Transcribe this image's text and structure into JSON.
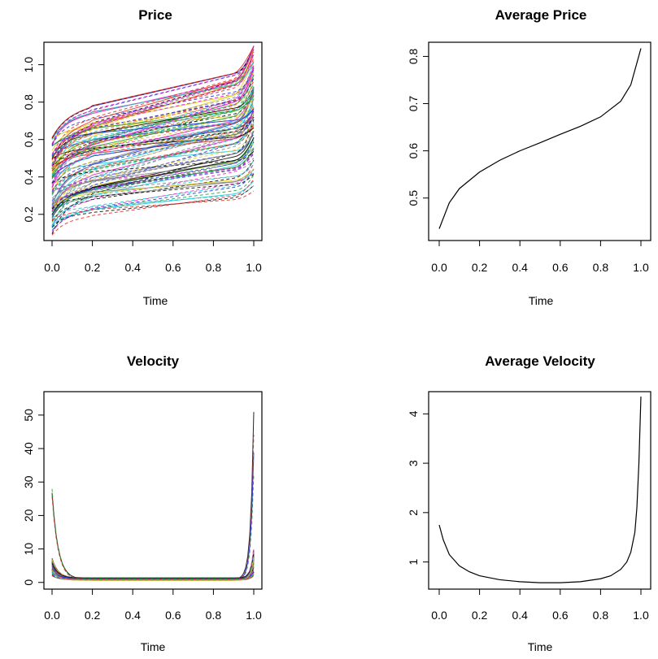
{
  "chart_data": [
    {
      "type": "line",
      "title": "Price",
      "xlabel": "Time",
      "ylabel": "",
      "xlim": [
        0,
        1
      ],
      "ylim": [
        0.06,
        1.12
      ],
      "xticks": [
        "0.0",
        "0.2",
        "0.4",
        "0.6",
        "0.8",
        "1.0"
      ],
      "yticks": [
        "0.2",
        "0.4",
        "0.6",
        "0.8",
        "1.0"
      ],
      "series_description": "many individual price trajectories (multi-coloured, solid and dashed), each rising from its start value near time 0 to a higher value near time 1",
      "series_count_approx": 120,
      "start_range": [
        0.08,
        0.62
      ],
      "end_range": [
        0.22,
        1.1
      ]
    },
    {
      "type": "line",
      "title": "Average Price",
      "xlabel": "Time",
      "ylabel": "",
      "xlim": [
        0,
        1
      ],
      "ylim": [
        0.41,
        0.83
      ],
      "xticks": [
        "0.0",
        "0.2",
        "0.4",
        "0.6",
        "0.8",
        "1.0"
      ],
      "yticks": [
        "0.5",
        "0.6",
        "0.7",
        "0.8"
      ],
      "x": [
        0.0,
        0.05,
        0.1,
        0.2,
        0.3,
        0.4,
        0.5,
        0.6,
        0.7,
        0.8,
        0.9,
        0.95,
        1.0
      ],
      "y": [
        0.435,
        0.49,
        0.52,
        0.555,
        0.58,
        0.6,
        0.617,
        0.635,
        0.652,
        0.672,
        0.705,
        0.74,
        0.817
      ]
    },
    {
      "type": "line",
      "title": "Velocity",
      "xlabel": "Time",
      "ylabel": "",
      "xlim": [
        0,
        1
      ],
      "ylim": [
        -2,
        57
      ],
      "xticks": [
        "0.0",
        "0.2",
        "0.4",
        "0.6",
        "0.8",
        "1.0"
      ],
      "yticks": [
        "0",
        "10",
        "20",
        "30",
        "40",
        "50"
      ],
      "series_description": "many individual velocity trajectories, spiking near time 0 (up to about 28) and near time 1 (up to about 55), close to 1 in between",
      "max_at_start": 28,
      "max_at_end": 55
    },
    {
      "type": "line",
      "title": "Average Velocity",
      "xlabel": "Time",
      "ylabel": "",
      "xlim": [
        0,
        1
      ],
      "ylim": [
        0.45,
        4.45
      ],
      "xticks": [
        "0.0",
        "0.2",
        "0.4",
        "0.6",
        "0.8",
        "1.0"
      ],
      "yticks": [
        "1",
        "2",
        "3",
        "4"
      ],
      "x": [
        0.0,
        0.02,
        0.05,
        0.1,
        0.15,
        0.2,
        0.3,
        0.4,
        0.5,
        0.6,
        0.7,
        0.8,
        0.85,
        0.9,
        0.93,
        0.95,
        0.97,
        0.98,
        0.99,
        1.0
      ],
      "y": [
        1.75,
        1.45,
        1.15,
        0.92,
        0.8,
        0.72,
        0.64,
        0.6,
        0.58,
        0.58,
        0.6,
        0.66,
        0.72,
        0.85,
        1.0,
        1.2,
        1.6,
        2.1,
        3.0,
        4.35
      ]
    }
  ],
  "colors": {
    "axis": "#000000",
    "average_line": "#000000",
    "trajectory_palette": [
      "#000000",
      "#e2231a",
      "#1f9e3a",
      "#1c2fe0",
      "#16c6d8",
      "#e020c8",
      "#e0c81a",
      "#808080"
    ]
  }
}
